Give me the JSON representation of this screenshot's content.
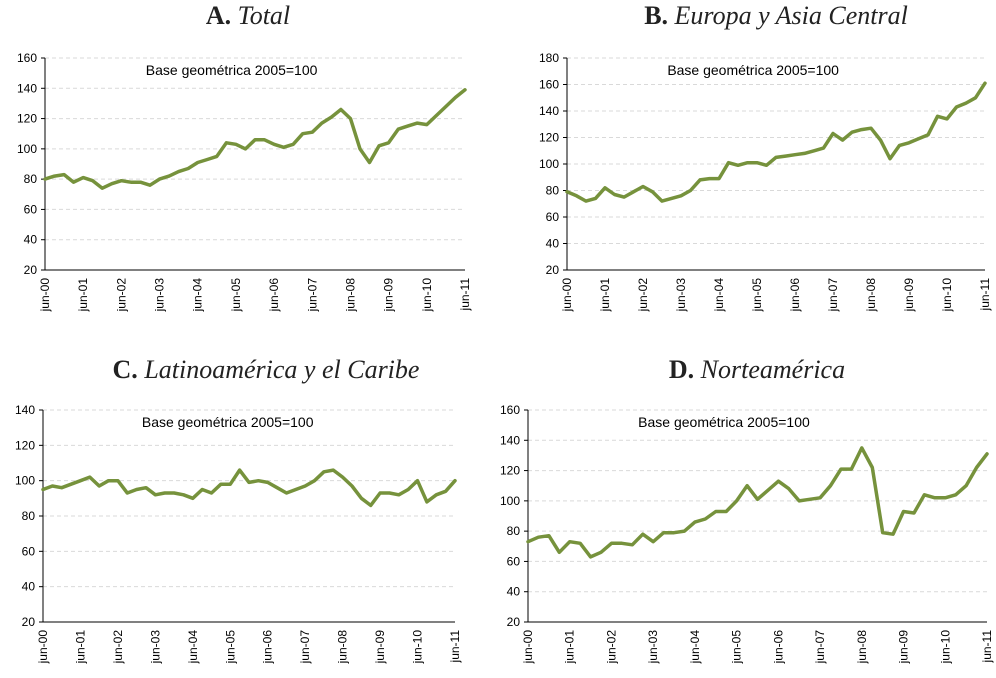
{
  "chart_data": [
    {
      "type": "line",
      "panel": "A.",
      "title": "Total",
      "annotation": "Base geométrica 2005=100",
      "color": "#76923c",
      "grid": true,
      "categories": [
        "jun-00",
        null,
        null,
        null,
        "jun-01",
        null,
        null,
        null,
        "jun-02",
        null,
        null,
        null,
        "jun-03",
        null,
        null,
        null,
        "jun-04",
        null,
        null,
        null,
        "jun-05",
        null,
        null,
        null,
        "jun-06",
        null,
        null,
        null,
        "jun-07",
        null,
        null,
        null,
        "jun-08",
        null,
        null,
        null,
        "jun-09",
        null,
        null,
        null,
        "jun-10",
        null,
        null,
        null,
        "jun-11"
      ],
      "values": [
        80,
        82,
        83,
        78,
        81,
        79,
        74,
        77,
        79,
        78,
        78,
        76,
        80,
        82,
        85,
        87,
        91,
        93,
        95,
        104,
        103,
        100,
        106,
        106,
        103,
        101,
        103,
        110,
        111,
        117,
        121,
        126,
        120,
        100,
        91,
        102,
        104,
        113,
        115,
        117,
        116,
        122,
        128,
        134,
        139
      ],
      "ylim": [
        20,
        160
      ],
      "yticks": [
        20,
        40,
        60,
        80,
        100,
        120,
        140,
        160
      ]
    },
    {
      "type": "line",
      "panel": "B.",
      "title": "Europa y Asia Central",
      "annotation": "Base geométrica 2005=100",
      "color": "#76923c",
      "grid": true,
      "categories": [
        "jun-00",
        null,
        null,
        null,
        "jun-01",
        null,
        null,
        null,
        "jun-02",
        null,
        null,
        null,
        "jun-03",
        null,
        null,
        null,
        "jun-04",
        null,
        null,
        null,
        "jun-05",
        null,
        null,
        null,
        "jun-06",
        null,
        null,
        null,
        "jun-07",
        null,
        null,
        null,
        "jun-08",
        null,
        null,
        null,
        "jun-09",
        null,
        null,
        null,
        "jun-10",
        null,
        null,
        null,
        "jun-11"
      ],
      "values": [
        79,
        76,
        72,
        74,
        82,
        77,
        75,
        79,
        83,
        79,
        72,
        74,
        76,
        80,
        88,
        89,
        89,
        101,
        99,
        101,
        101,
        99,
        105,
        106,
        107,
        108,
        110,
        112,
        123,
        118,
        124,
        126,
        127,
        118,
        104,
        114,
        116,
        119,
        122,
        136,
        134,
        143,
        146,
        150,
        161
      ],
      "ylim": [
        20,
        180
      ],
      "yticks": [
        20,
        40,
        60,
        80,
        100,
        120,
        140,
        160,
        180
      ]
    },
    {
      "type": "line",
      "panel": "C.",
      "title": "Latinoamérica y el Caribe",
      "annotation": "Base geométrica 2005=100",
      "color": "#76923c",
      "grid": true,
      "categories": [
        "jun-00",
        null,
        null,
        null,
        "jun-01",
        null,
        null,
        null,
        "jun-02",
        null,
        null,
        null,
        "jun-03",
        null,
        null,
        null,
        "jun-04",
        null,
        null,
        null,
        "jun-05",
        null,
        null,
        null,
        "jun-06",
        null,
        null,
        null,
        "jun-07",
        null,
        null,
        null,
        "jun-08",
        null,
        null,
        null,
        "jun-09",
        null,
        null,
        null,
        "jun-10",
        null,
        null,
        null,
        "jun-11"
      ],
      "values": [
        95,
        97,
        96,
        98,
        100,
        102,
        97,
        100,
        100,
        93,
        95,
        96,
        92,
        93,
        93,
        92,
        90,
        95,
        93,
        98,
        98,
        106,
        99,
        100,
        99,
        96,
        93,
        95,
        97,
        100,
        105,
        106,
        102,
        97,
        90,
        86,
        93,
        93,
        92,
        95,
        100,
        88,
        92,
        94,
        100
      ],
      "ylim": [
        20,
        140
      ],
      "yticks": [
        20,
        40,
        60,
        80,
        100,
        120,
        140
      ]
    },
    {
      "type": "line",
      "panel": "D.",
      "title": "Norteamérica",
      "annotation": "Base geométrica 2005=100",
      "color": "#76923c",
      "grid": true,
      "categories": [
        "jun-00",
        null,
        null,
        null,
        "jun-01",
        null,
        null,
        null,
        "jun-02",
        null,
        null,
        null,
        "jun-03",
        null,
        null,
        null,
        "jun-04",
        null,
        null,
        null,
        "jun-05",
        null,
        null,
        null,
        "jun-06",
        null,
        null,
        null,
        "jun-07",
        null,
        null,
        null,
        "jun-08",
        null,
        null,
        null,
        "jun-09",
        null,
        null,
        null,
        "jun-10",
        null,
        null,
        null,
        "jun-11"
      ],
      "values": [
        73,
        76,
        77,
        66,
        73,
        72,
        63,
        66,
        72,
        72,
        71,
        78,
        73,
        79,
        79,
        80,
        86,
        88,
        93,
        93,
        100,
        110,
        101,
        107,
        113,
        108,
        100,
        101,
        102,
        110,
        121,
        121,
        135,
        122,
        79,
        78,
        93,
        92,
        104,
        102,
        102,
        104,
        110,
        122,
        131
      ],
      "ylim": [
        20,
        160
      ],
      "yticks": [
        20,
        40,
        60,
        80,
        100,
        120,
        140,
        160
      ]
    }
  ]
}
